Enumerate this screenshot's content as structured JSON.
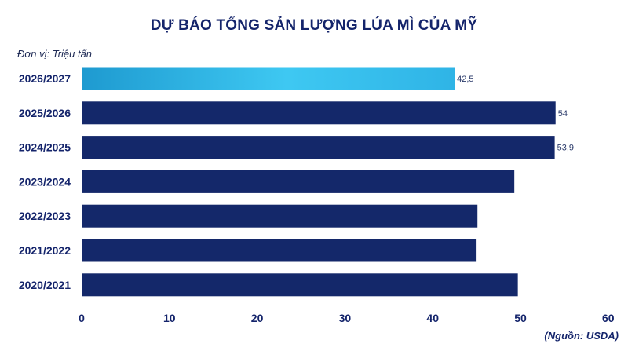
{
  "title": "DỰ BÁO TỔNG SẢN LƯỢNG LÚA MÌ CỦA MỸ",
  "unit_label": "Đơn vị: Triệu tấn",
  "source": "(Nguồn: USDA)",
  "colors": {
    "bar": "#14286a",
    "highlight_start": "#1e9ad0",
    "highlight_end": "#3ec8f2",
    "text": "#14246b"
  },
  "chart_data": {
    "type": "bar",
    "orientation": "horizontal",
    "categories": [
      "2026/2027",
      "2025/2026",
      "2024/2025",
      "2023/2024",
      "2022/2023",
      "2021/2022",
      "2020/2021"
    ],
    "values": [
      42.5,
      54,
      53.9,
      49.3,
      45.1,
      45.0,
      49.7
    ],
    "data_labels": [
      "42,5",
      "54",
      "53,9",
      null,
      null,
      null,
      null
    ],
    "highlight_index": 0,
    "xlim": [
      0,
      60
    ],
    "xticks": [
      0,
      10,
      20,
      30,
      40,
      50,
      60
    ],
    "grid": false,
    "legend": "none"
  }
}
